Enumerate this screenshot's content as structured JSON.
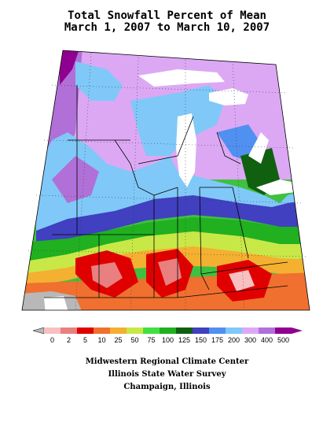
{
  "title": "Total Snowfall Percent of Mean",
  "subtitle": "March 1, 2007 to March 10, 2007",
  "legend": {
    "labels": [
      "0",
      "2",
      "5",
      "10",
      "25",
      "50",
      "75",
      "100",
      "125",
      "150",
      "175",
      "200",
      "300",
      "400",
      "500"
    ],
    "colors": [
      "#f8c0c0",
      "#e88080",
      "#e00000",
      "#f07030",
      "#f4b030",
      "#c8e848",
      "#40e040",
      "#20b020",
      "#106010",
      "#4040c0",
      "#5090f0",
      "#80c8f8",
      "#dca8f4",
      "#b070d8",
      "#900090"
    ],
    "low_color": "#b8b8b8",
    "high_color": "#900090"
  },
  "credits": [
    "Midwestern Regional Climate Center",
    "Illinois State Water Survey",
    "Champaign, Illinois"
  ]
}
